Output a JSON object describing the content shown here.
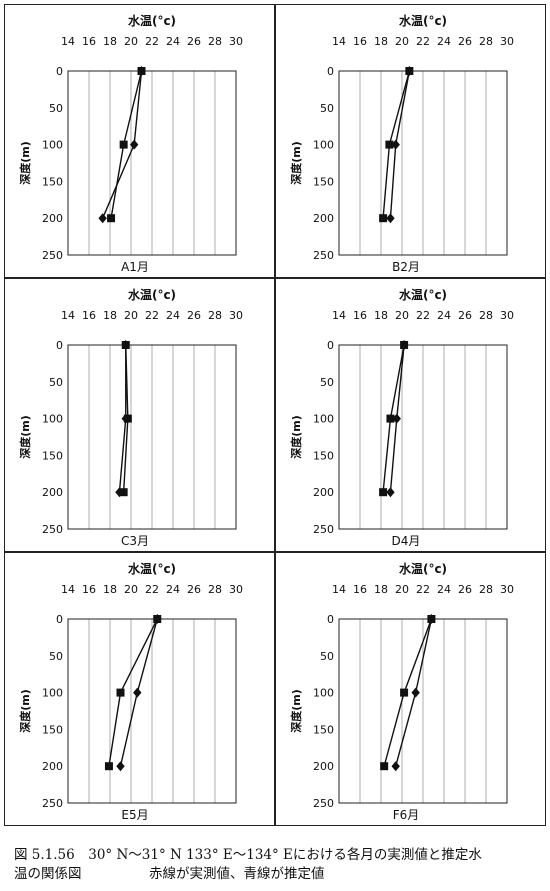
{
  "caption": {
    "line1": "図 5.1.56　30° N～31° N 133° E～134° Eにおける各月の実測値と推定水",
    "line2_a": "温の関係図",
    "line2_b": "赤線が実測値、青線が推定値"
  },
  "chart_data": [
    {
      "type": "line",
      "label": "A1月",
      "xlabel": "水温(°c)",
      "ylabel": "深度(m)",
      "xlim": [
        14,
        30
      ],
      "ylim": [
        250,
        0
      ],
      "x_ticks": [
        "14",
        "16",
        "18",
        "20",
        "22",
        "24",
        "26",
        "28",
        "30"
      ],
      "y_ticks": [
        "0",
        "50",
        "100",
        "150",
        "200",
        "250"
      ],
      "series": [
        {
          "marker": "square",
          "points": [
            [
              21.0,
              0
            ],
            [
              19.3,
              100
            ],
            [
              18.1,
              200
            ]
          ]
        },
        {
          "marker": "diamond",
          "points": [
            [
              21.0,
              0
            ],
            [
              20.3,
              100
            ],
            [
              17.3,
              200
            ]
          ]
        }
      ]
    },
    {
      "type": "line",
      "label": "B2月",
      "xlabel": "水温(°c)",
      "ylabel": "深度(m)",
      "xlim": [
        14,
        30
      ],
      "ylim": [
        250,
        0
      ],
      "x_ticks": [
        "14",
        "16",
        "18",
        "20",
        "22",
        "24",
        "26",
        "28",
        "30"
      ],
      "y_ticks": [
        "0",
        "50",
        "100",
        "150",
        "200",
        "250"
      ],
      "series": [
        {
          "marker": "square",
          "points": [
            [
              20.7,
              0
            ],
            [
              18.8,
              100
            ],
            [
              18.2,
              200
            ]
          ]
        },
        {
          "marker": "diamond",
          "points": [
            [
              20.7,
              0
            ],
            [
              19.4,
              100
            ],
            [
              18.9,
              200
            ]
          ]
        }
      ]
    },
    {
      "type": "line",
      "label": "C3月",
      "xlabel": "水温(°c)",
      "ylabel": "深度(m)",
      "xlim": [
        14,
        30
      ],
      "ylim": [
        250,
        0
      ],
      "x_ticks": [
        "14",
        "16",
        "18",
        "20",
        "22",
        "24",
        "26",
        "28",
        "30"
      ],
      "y_ticks": [
        "0",
        "50",
        "100",
        "150",
        "200",
        "250"
      ],
      "series": [
        {
          "marker": "square",
          "points": [
            [
              19.5,
              0
            ],
            [
              19.7,
              100
            ],
            [
              19.3,
              200
            ]
          ]
        },
        {
          "marker": "diamond",
          "points": [
            [
              19.5,
              0
            ],
            [
              19.5,
              100
            ],
            [
              18.9,
              200
            ]
          ]
        }
      ]
    },
    {
      "type": "line",
      "label": "D4月",
      "xlabel": "水温(°c)",
      "ylabel": "深度(m)",
      "xlim": [
        14,
        30
      ],
      "ylim": [
        250,
        0
      ],
      "x_ticks": [
        "14",
        "16",
        "18",
        "20",
        "22",
        "24",
        "26",
        "28",
        "30"
      ],
      "y_ticks": [
        "0",
        "50",
        "100",
        "150",
        "200",
        "250"
      ],
      "series": [
        {
          "marker": "square",
          "points": [
            [
              20.2,
              0
            ],
            [
              18.9,
              100
            ],
            [
              18.2,
              200
            ]
          ]
        },
        {
          "marker": "diamond",
          "points": [
            [
              20.2,
              0
            ],
            [
              19.5,
              100
            ],
            [
              18.9,
              200
            ]
          ]
        }
      ]
    },
    {
      "type": "line",
      "label": "E5月",
      "xlabel": "水温(°c)",
      "ylabel": "深度(m)",
      "xlim": [
        14,
        30
      ],
      "ylim": [
        250,
        0
      ],
      "x_ticks": [
        "14",
        "16",
        "18",
        "20",
        "22",
        "24",
        "26",
        "28",
        "30"
      ],
      "y_ticks": [
        "0",
        "50",
        "100",
        "150",
        "200",
        "250"
      ],
      "series": [
        {
          "marker": "square",
          "points": [
            [
              22.5,
              0
            ],
            [
              19.0,
              100
            ],
            [
              17.9,
              200
            ]
          ]
        },
        {
          "marker": "diamond",
          "points": [
            [
              22.5,
              0
            ],
            [
              20.6,
              100
            ],
            [
              19.0,
              200
            ]
          ]
        }
      ]
    },
    {
      "type": "line",
      "label": "F6月",
      "xlabel": "水温(°c)",
      "ylabel": "深度(m)",
      "xlim": [
        14,
        30
      ],
      "ylim": [
        250,
        0
      ],
      "x_ticks": [
        "14",
        "16",
        "18",
        "20",
        "22",
        "24",
        "26",
        "28",
        "30"
      ],
      "y_ticks": [
        "0",
        "50",
        "100",
        "150",
        "200",
        "250"
      ],
      "series": [
        {
          "marker": "square",
          "points": [
            [
              22.8,
              0
            ],
            [
              20.2,
              100
            ],
            [
              18.3,
              200
            ]
          ]
        },
        {
          "marker": "diamond",
          "points": [
            [
              22.8,
              0
            ],
            [
              21.3,
              100
            ],
            [
              19.4,
              200
            ]
          ]
        }
      ]
    }
  ]
}
